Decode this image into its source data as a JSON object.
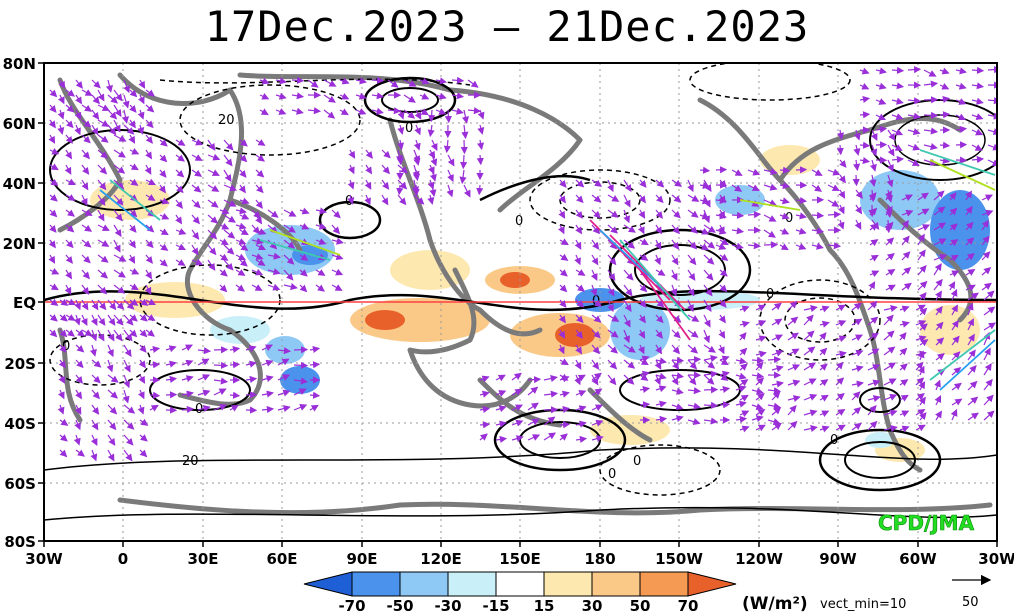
{
  "title": "17Dec.2023 – 21Dec.2023",
  "lat_labels": [
    "80N",
    "60N",
    "40N",
    "20N",
    "EQ",
    "20S",
    "40S",
    "60S",
    "80S"
  ],
  "lon_labels": [
    "30W",
    "0",
    "30E",
    "60E",
    "90E",
    "120E",
    "150E",
    "180",
    "150W",
    "120W",
    "90W",
    "60W",
    "30W"
  ],
  "contour_labels": [
    "20",
    "0",
    "0",
    "0",
    "0",
    "0",
    "0",
    "0",
    "0",
    "0",
    "20",
    "0",
    "0"
  ],
  "legend": {
    "values": [
      "-70",
      "-50",
      "-30",
      "-15",
      "15",
      "30",
      "50",
      "70"
    ],
    "colors": [
      "#1f5fd6",
      "#4a92ec",
      "#8ec9f5",
      "#c9f0f8",
      "#ffffff",
      "#fde9b0",
      "#fbc987",
      "#f59a52",
      "#e8602a"
    ],
    "unit": "(W/m²)",
    "vect_min": "vect_min=10"
  },
  "reference_vector": {
    "value": "50"
  },
  "credit": "CPD/JMA",
  "colors": {
    "equator_line": "#ff4040",
    "coast": "#7a7a7a",
    "credit": "#22dd22",
    "vector": "#9a2ed8"
  }
}
